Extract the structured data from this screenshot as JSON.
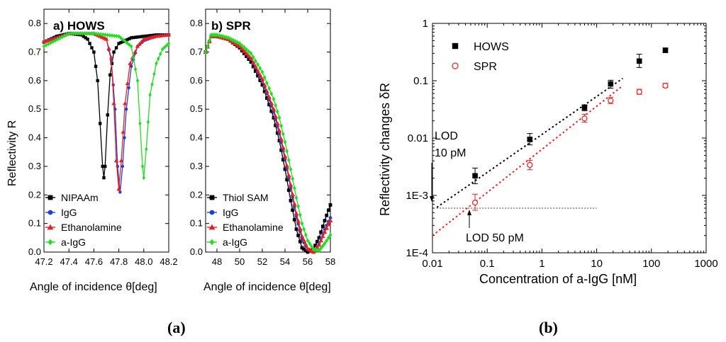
{
  "chart_data": [
    {
      "type": "line",
      "title": "a) HOWS",
      "xlabel": "Angle of incidence θ[deg]",
      "ylabel": "Reflectivity R",
      "xlim": [
        47.2,
        48.2
      ],
      "ylim": [
        0.0,
        0.85
      ],
      "xticks": [
        "47.2",
        "47.4",
        "47.6",
        "47.8",
        "48.0",
        "48.2"
      ],
      "yticks": [
        "0.0",
        "0.1",
        "0.2",
        "0.3",
        "0.4",
        "0.5",
        "0.6",
        "0.7",
        "0.8"
      ],
      "legend_position": "bottom-left",
      "series": [
        {
          "name": "NIPAAm",
          "color": "#000000",
          "marker": "square",
          "x": [
            47.2,
            47.3,
            47.4,
            47.5,
            47.55,
            47.6,
            47.63,
            47.65,
            47.67,
            47.68,
            47.69,
            47.71,
            47.73,
            47.76,
            47.8,
            47.9,
            48.0,
            48.1,
            48.2
          ],
          "y": [
            0.735,
            0.755,
            0.765,
            0.76,
            0.745,
            0.7,
            0.6,
            0.45,
            0.3,
            0.26,
            0.3,
            0.48,
            0.62,
            0.7,
            0.73,
            0.75,
            0.755,
            0.76,
            0.76
          ]
        },
        {
          "name": "IgG",
          "color": "#1f3fd6",
          "marker": "circle",
          "x": [
            47.2,
            47.4,
            47.6,
            47.7,
            47.74,
            47.77,
            47.79,
            47.81,
            47.83,
            47.86,
            47.9,
            47.95,
            48.0,
            48.1,
            48.2
          ],
          "y": [
            0.735,
            0.765,
            0.765,
            0.745,
            0.67,
            0.5,
            0.3,
            0.21,
            0.3,
            0.5,
            0.65,
            0.72,
            0.74,
            0.755,
            0.76
          ]
        },
        {
          "name": "Ethanolamine",
          "color": "#e82020",
          "marker": "triangle",
          "x": [
            47.2,
            47.4,
            47.6,
            47.7,
            47.74,
            47.76,
            47.78,
            47.8,
            47.82,
            47.85,
            47.89,
            47.95,
            48.0,
            48.1,
            48.2
          ],
          "y": [
            0.735,
            0.765,
            0.765,
            0.745,
            0.68,
            0.52,
            0.32,
            0.22,
            0.32,
            0.52,
            0.66,
            0.72,
            0.745,
            0.755,
            0.76
          ]
        },
        {
          "name": "a-IgG",
          "color": "#22dd22",
          "marker": "diamond",
          "x": [
            47.2,
            47.4,
            47.6,
            47.8,
            47.9,
            47.95,
            47.97,
            47.99,
            48.0,
            48.02,
            48.05,
            48.1,
            48.15,
            48.2
          ],
          "y": [
            0.72,
            0.765,
            0.765,
            0.755,
            0.72,
            0.6,
            0.45,
            0.3,
            0.26,
            0.36,
            0.55,
            0.66,
            0.71,
            0.73
          ]
        }
      ]
    },
    {
      "type": "line",
      "title": "b) SPR",
      "xlabel": "Angle of incidence θ[deg]",
      "xlim": [
        47,
        58
      ],
      "ylim": [
        0.0,
        0.85
      ],
      "xticks": [
        "48",
        "50",
        "52",
        "54",
        "56",
        "58"
      ],
      "yticks": [
        "0.0",
        "0.1",
        "0.2",
        "0.3",
        "0.4",
        "0.5",
        "0.6",
        "0.7",
        "0.8"
      ],
      "legend_position": "bottom-left",
      "series": [
        {
          "name": "Thiol SAM",
          "color": "#000000",
          "marker": "square",
          "x": [
            47,
            47.5,
            48,
            49,
            50,
            51,
            52,
            53,
            53.5,
            54,
            54.5,
            55,
            55.5,
            56,
            56.5,
            57,
            57.5,
            58
          ],
          "y": [
            0.7,
            0.755,
            0.755,
            0.745,
            0.715,
            0.665,
            0.585,
            0.47,
            0.39,
            0.29,
            0.18,
            0.08,
            0.015,
            0.0,
            0.01,
            0.05,
            0.11,
            0.165
          ]
        },
        {
          "name": "IgG",
          "color": "#1f3fd6",
          "marker": "circle",
          "x": [
            47,
            47.5,
            48,
            49,
            50,
            51,
            52,
            53,
            53.5,
            54,
            54.5,
            55,
            55.5,
            56,
            56.5,
            57,
            57.5,
            58
          ],
          "y": [
            0.7,
            0.755,
            0.755,
            0.745,
            0.72,
            0.675,
            0.6,
            0.49,
            0.415,
            0.325,
            0.225,
            0.125,
            0.045,
            0.01,
            0.0,
            0.03,
            0.08,
            0.12
          ]
        },
        {
          "name": "Ethanolamine",
          "color": "#e82020",
          "marker": "triangle",
          "x": [
            47,
            47.5,
            48,
            49,
            50,
            51,
            52,
            53,
            53.5,
            54,
            54.5,
            55,
            55.5,
            56,
            56.5,
            57,
            57.5,
            58
          ],
          "y": [
            0.7,
            0.755,
            0.755,
            0.745,
            0.72,
            0.678,
            0.605,
            0.5,
            0.425,
            0.335,
            0.235,
            0.135,
            0.055,
            0.012,
            0.0,
            0.025,
            0.07,
            0.11
          ]
        },
        {
          "name": "a-IgG",
          "color": "#22dd22",
          "marker": "diamond",
          "x": [
            47,
            47.5,
            48,
            49,
            50,
            51,
            52,
            53,
            53.5,
            54,
            54.5,
            55,
            55.5,
            56,
            56.5,
            57,
            57.5,
            58
          ],
          "y": [
            0.7,
            0.76,
            0.76,
            0.75,
            0.73,
            0.695,
            0.63,
            0.535,
            0.47,
            0.385,
            0.29,
            0.19,
            0.1,
            0.04,
            0.01,
            0.005,
            0.03,
            0.06
          ]
        }
      ]
    },
    {
      "type": "scatter",
      "xlabel": "Concentration of a-IgG [nM]",
      "ylabel": "Reflectivity changes δR",
      "xscale": "log",
      "yscale": "log",
      "xlim": [
        0.01,
        1000
      ],
      "ylim": [
        0.0001,
        1
      ],
      "xticks": [
        "0.01",
        "0.1",
        "1",
        "10",
        "100",
        "1000"
      ],
      "yticks": [
        "1E-4",
        "1E-3",
        "0.01",
        "0.1",
        "1"
      ],
      "legend_position": "top-left",
      "series": [
        {
          "name": "HOWS",
          "color": "#000000",
          "marker": "filled-square",
          "x": [
            0.06,
            0.6,
            6,
            18,
            60,
            180
          ],
          "y": [
            0.0022,
            0.0095,
            0.034,
            0.088,
            0.22,
            0.34
          ],
          "err_low": [
            0.0016,
            0.0076,
            0.03,
            0.074,
            0.17,
            0.31
          ],
          "err_high": [
            0.003,
            0.012,
            0.038,
            0.102,
            0.29,
            0.37
          ]
        },
        {
          "name": "SPR",
          "color": "#e82020",
          "marker": "open-circle",
          "x": [
            0.06,
            0.6,
            6,
            18,
            60,
            180
          ],
          "y": [
            0.00075,
            0.0034,
            0.022,
            0.045,
            0.064,
            0.082
          ],
          "err_low": [
            0.00055,
            0.0028,
            0.019,
            0.04,
            0.058,
            0.076
          ],
          "err_high": [
            0.00105,
            0.0041,
            0.026,
            0.051,
            0.071,
            0.09
          ]
        }
      ],
      "fit_lines": [
        {
          "name": "HOWS fit",
          "color": "#000000",
          "x": [
            0.012,
            30
          ],
          "y": [
            0.00062,
            0.11
          ]
        },
        {
          "name": "SPR fit",
          "color": "#e82020",
          "x": [
            0.01,
            30
          ],
          "y": [
            0.0002,
            0.082
          ]
        }
      ],
      "lod_threshold": {
        "y": 0.0006,
        "x": [
          0.012,
          10
        ]
      },
      "annotations": {
        "lod_hows_line1": "LOD",
        "lod_hows_line2": "10 pM",
        "lod_spr": "LOD 50 pM"
      }
    }
  ],
  "captions": {
    "left": "(a)",
    "right": "(b)"
  }
}
